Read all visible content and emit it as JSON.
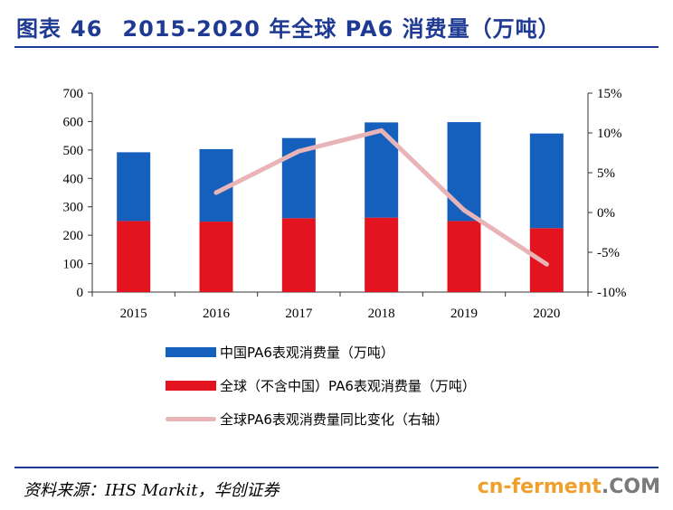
{
  "header": {
    "label": "图表",
    "number": "46",
    "title": "2015-2020 年全球 PA6 消费量（万吨）"
  },
  "colors": {
    "china": "#1560bd",
    "rest": "#e3141f",
    "yoy": "#e8b4b8",
    "axis": "#333333",
    "accent": "#1f3a93"
  },
  "chart_data": {
    "type": "bar",
    "stacked": true,
    "title": "2015-2020 年全球 PA6 消费量（万吨）",
    "categories": [
      "2015",
      "2016",
      "2017",
      "2018",
      "2019",
      "2020"
    ],
    "series": [
      {
        "name": "全球（不含中国）PA6表观消费量（万吨）",
        "values": [
          250,
          248,
          260,
          262,
          250,
          225
        ],
        "axis": "left"
      },
      {
        "name": "中国PA6表观消费量（万吨）",
        "values": [
          242,
          255,
          282,
          335,
          348,
          333
        ],
        "axis": "left"
      },
      {
        "name": "全球PA6表观消费量同比变化（右轴）",
        "type": "line",
        "values": [
          null,
          2.5,
          7.7,
          10.3,
          0.3,
          -6.5
        ],
        "axis": "right"
      }
    ],
    "ylim": [
      0,
      700
    ],
    "yticks": [
      "0",
      "100",
      "200",
      "300",
      "400",
      "500",
      "600",
      "700"
    ],
    "y2lim": [
      -10,
      15
    ],
    "y2ticks": [
      "-10%",
      "-5%",
      "0%",
      "5%",
      "10%",
      "15%"
    ],
    "legend_position": "bottom"
  },
  "legend": [
    {
      "label": "中国PA6表观消费量（万吨）",
      "color": "#1560bd",
      "kind": "bar"
    },
    {
      "label": "全球（不含中国）PA6表观消费量（万吨）",
      "color": "#e3141f",
      "kind": "bar"
    },
    {
      "label": "全球PA6表观消费量同比变化（右轴）",
      "color": "#e8b4b8",
      "kind": "line"
    }
  ],
  "footer": {
    "source": "资料来源：IHS Markit，华创证券",
    "watermark_a": "cn-ferment",
    "watermark_b": ".COM"
  }
}
